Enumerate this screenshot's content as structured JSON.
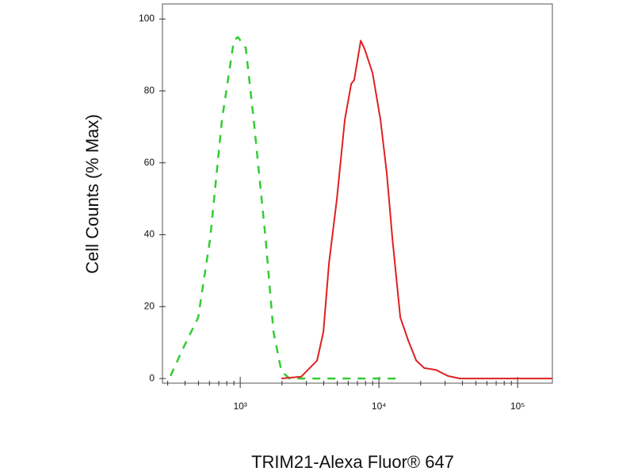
{
  "chart_data": {
    "type": "line",
    "x_label": "TRIM21-Alexa Fluor® 647",
    "y_label": "Cell Counts (% Max)",
    "x_log": true,
    "xlim": [
      275,
      178000
    ],
    "ylim": [
      -1.3,
      104.2
    ],
    "xticks": [
      {
        "value": 1000,
        "label": "10³"
      },
      {
        "value": 10000,
        "label": "10⁴"
      },
      {
        "value": 100000,
        "label": "10⁵"
      }
    ],
    "xminorticks": [
      300,
      400,
      500,
      600,
      700,
      800,
      900,
      2000,
      3000,
      4000,
      5000,
      6000,
      7000,
      8000,
      9000,
      20000,
      30000,
      40000,
      50000,
      60000,
      70000,
      80000,
      90000
    ],
    "yticks": [
      0,
      20,
      40,
      60,
      80,
      100
    ],
    "series": [
      {
        "color": "#33cc33",
        "dashed": true,
        "x": [
          314,
          383,
          498,
          607,
          739,
          900,
          962,
          1096,
          1250,
          1523,
          1738,
          1982,
          2262,
          13360
        ],
        "values": [
          0.7,
          8,
          17,
          39,
          72,
          94,
          95,
          92,
          72,
          39,
          13,
          2,
          0,
          0
        ]
      },
      {
        "color": "#e02020",
        "dashed": false,
        "x": [
          1982,
          2754,
          3583,
          3981,
          4365,
          4977,
          5677,
          6310,
          6630,
          7394,
          7900,
          9000,
          10260,
          11400,
          12500,
          14260,
          16260,
          18560,
          21200,
          25780,
          31400,
          38280,
          178000
        ],
        "values": [
          0,
          0.5,
          5,
          13,
          32,
          50,
          72,
          82,
          83,
          94,
          91.6,
          85,
          72,
          57,
          39,
          17,
          10.6,
          5,
          2.9,
          2.4,
          0.7,
          0,
          0
        ]
      }
    ]
  }
}
